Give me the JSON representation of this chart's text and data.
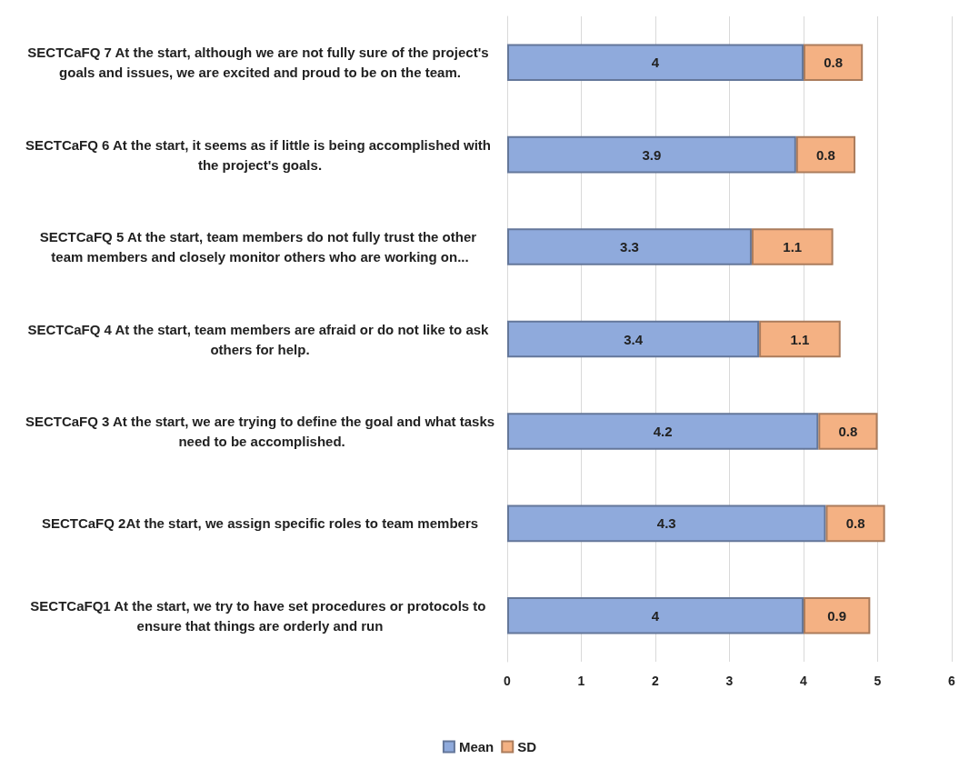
{
  "chart_data": {
    "type": "bar",
    "orientation": "horizontal",
    "stacked": true,
    "data_labels": true,
    "grid": "x",
    "legend": "bottom",
    "categories": [
      "SECTCaFQ 7 At the start, although we are not fully sure of the project's goals and issues, we are excited and proud to be on the team.",
      "SECTCaFQ 6 At the start, it seems as if little is being accomplished with the project's goals.",
      "SECTCaFQ 5 At the start, team members do not fully trust the other team members and closely monitor others who are working on...",
      "SECTCaFQ 4 At the start, team members are afraid or do not like to ask others for help.",
      "SECTCaFQ 3 At the start, we are trying to define the goal and what tasks need to be accomplished.",
      "SECTCaFQ 2At the start, we assign specific roles to team members",
      "SECTCaFQ1 At the start, we try to have set procedures or protocols to ensure that things are orderly and run"
    ],
    "series": [
      {
        "name": "Mean",
        "color": "#8faadc",
        "values": [
          4,
          3.9,
          3.3,
          3.4,
          4.2,
          4.3,
          4
        ]
      },
      {
        "name": "SD",
        "color": "#f4b183",
        "values": [
          0.8,
          0.8,
          1.1,
          1.1,
          0.8,
          0.8,
          0.9
        ]
      }
    ],
    "xlim": [
      0,
      6
    ],
    "xticks": [
      0,
      1,
      2,
      3,
      4,
      5,
      6
    ]
  }
}
